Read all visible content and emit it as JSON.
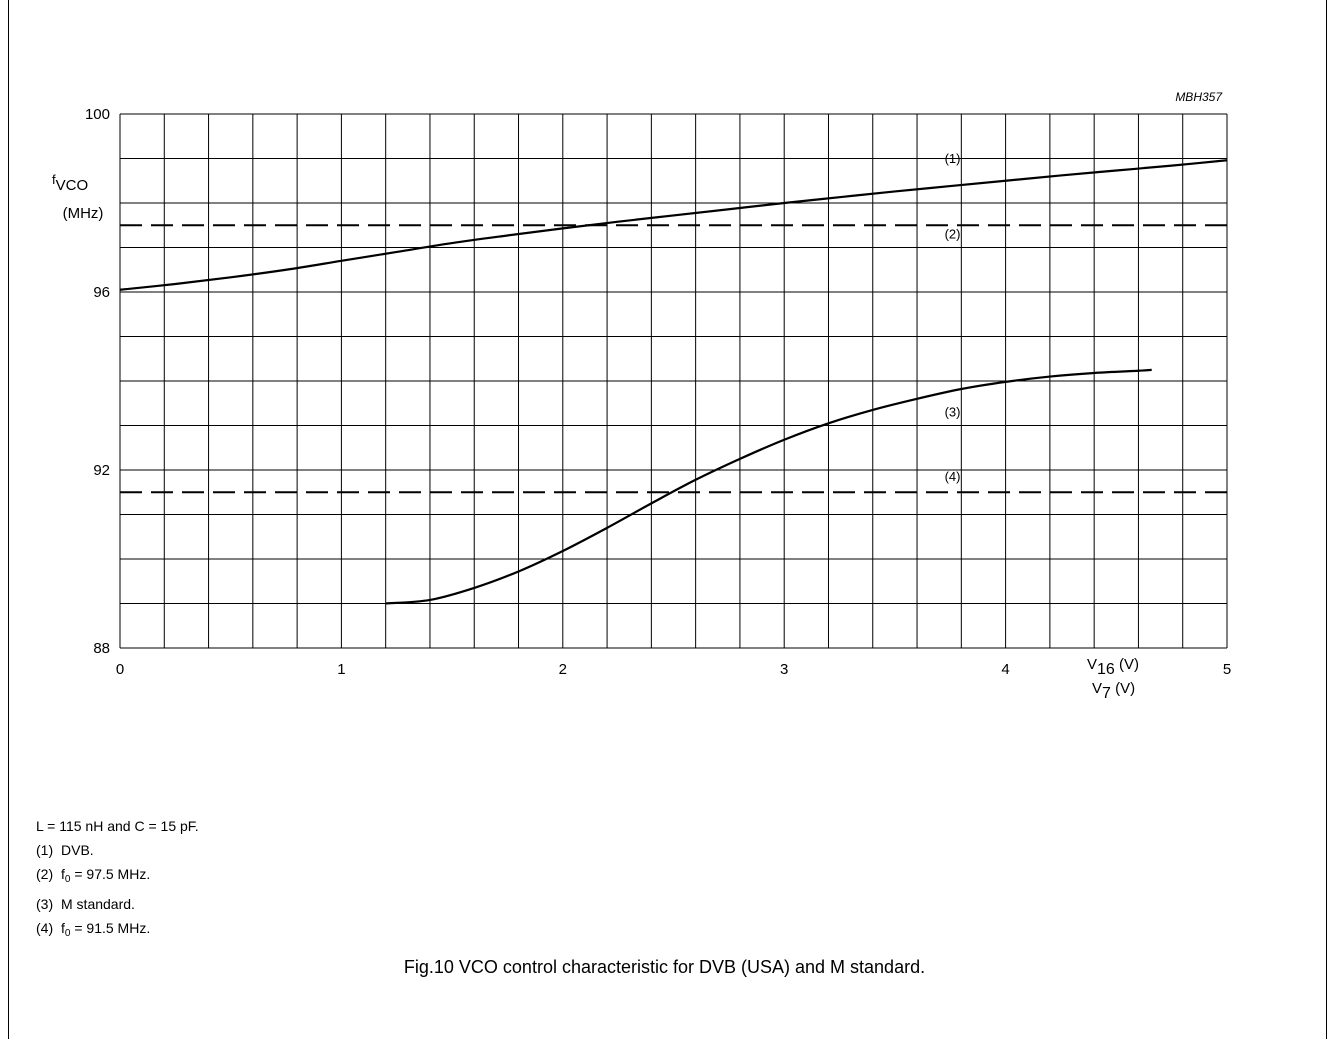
{
  "figure_code": "MBH357",
  "caption": "Fig.10  VCO control characteristic for DVB (USA) and M standard.",
  "notes": {
    "conditions": "L = 115 nH and C = 15 pF.",
    "items": [
      {
        "num": "(1)",
        "pre": "DVB.",
        "sub": "",
        "post": ""
      },
      {
        "num": "(2)",
        "pre": "f",
        "sub": "0",
        "post": " = 97.5 MHz."
      },
      {
        "num": "(3)",
        "pre": "M standard.",
        "sub": "",
        "post": ""
      },
      {
        "num": "(4)",
        "pre": "f",
        "sub": "0",
        "post": " = 91.5 MHz."
      }
    ]
  },
  "chart_data": {
    "type": "line",
    "ylabel": {
      "main": "f",
      "sub": "VCO",
      "unit": "(MHz)"
    },
    "xlabel": [
      {
        "main": "V",
        "sub": "16",
        "unit": " (V)"
      },
      {
        "main": "V",
        "sub": "7",
        "unit": " (V)"
      }
    ],
    "xlim": [
      0,
      5
    ],
    "ylim": [
      88,
      100
    ],
    "x_ticks": [
      "0",
      "1",
      "2",
      "3",
      "4",
      "5"
    ],
    "y_ticks": [
      "88",
      "92",
      "96",
      "100"
    ],
    "grid": true,
    "series": [
      {
        "name": "(1)",
        "style": "solid",
        "x": [
          0,
          0.25,
          0.5,
          0.75,
          1.0,
          1.25,
          1.5,
          1.75,
          2.0,
          2.25,
          2.5,
          2.75,
          3.0,
          3.25,
          3.5,
          3.75,
          4.0,
          4.25,
          4.5,
          4.75,
          5.0
        ],
        "y": [
          96.05,
          96.18,
          96.33,
          96.5,
          96.7,
          96.9,
          97.1,
          97.27,
          97.43,
          97.58,
          97.72,
          97.86,
          98.0,
          98.13,
          98.26,
          98.38,
          98.5,
          98.62,
          98.73,
          98.84,
          98.96
        ]
      },
      {
        "name": "(2)",
        "style": "dashed",
        "x": [
          0,
          5
        ],
        "y": [
          97.5,
          97.5
        ]
      },
      {
        "name": "(3)",
        "style": "solid",
        "x": [
          1.2,
          1.4,
          1.6,
          1.8,
          2.0,
          2.2,
          2.4,
          2.6,
          2.8,
          3.0,
          3.2,
          3.4,
          3.6,
          3.8,
          4.0,
          4.2,
          4.4,
          4.6,
          4.66
        ],
        "y": [
          89.0,
          89.08,
          89.35,
          89.72,
          90.18,
          90.7,
          91.25,
          91.78,
          92.25,
          92.68,
          93.05,
          93.35,
          93.6,
          93.82,
          93.98,
          94.1,
          94.18,
          94.23,
          94.25
        ]
      },
      {
        "name": "(4)",
        "style": "dashed",
        "x": [
          0,
          5
        ],
        "y": [
          91.5,
          91.5
        ]
      }
    ],
    "curve_labels": [
      {
        "text": "(1)",
        "x": 3.72,
        "y": 98.9
      },
      {
        "text": "(2)",
        "x": 3.72,
        "y": 97.2
      },
      {
        "text": "(3)",
        "x": 3.72,
        "y": 93.2
      },
      {
        "text": "(4)",
        "x": 3.72,
        "y": 91.75
      }
    ]
  }
}
